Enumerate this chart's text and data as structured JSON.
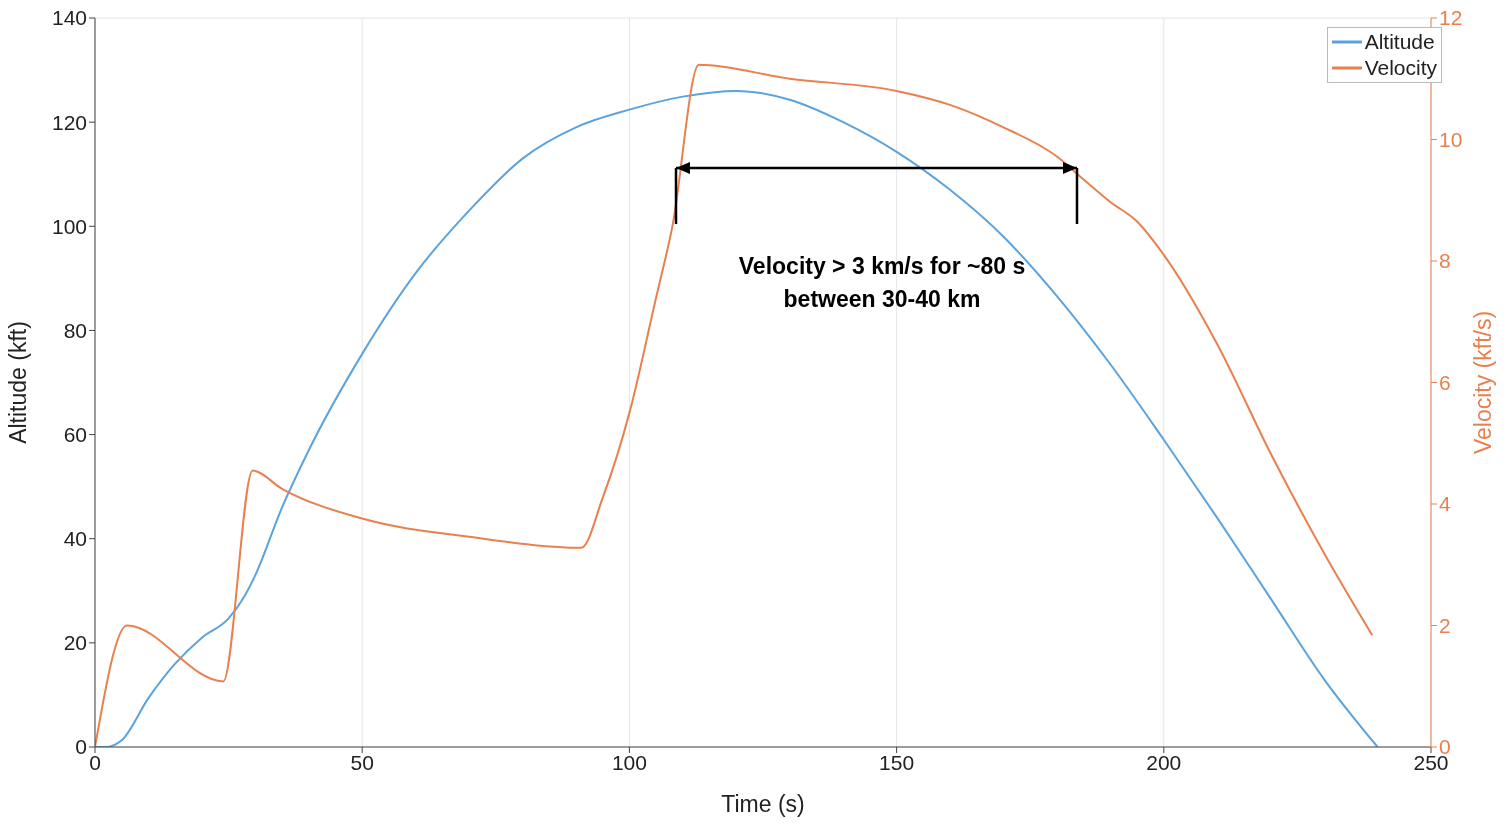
{
  "chart_data": {
    "type": "line",
    "xlabel": "Time (s)",
    "ylabel": "Altitude (kft)",
    "y2label": "Velocity (kft/s)",
    "xlim": [
      0,
      250
    ],
    "xticks": [
      0,
      50,
      100,
      150,
      200,
      250
    ],
    "ylim": [
      0,
      140
    ],
    "yticks": [
      0,
      20,
      40,
      60,
      80,
      100,
      120,
      140
    ],
    "y2lim": [
      0,
      12
    ],
    "y2ticks": [
      0,
      2,
      4,
      6,
      8,
      10,
      12
    ],
    "grid": true,
    "legend": "top right",
    "marker": "none",
    "line_style": "solid",
    "annotations": [
      "Velocity > 3 km/s for ~80 s between 30-40 km"
    ],
    "series": [
      {
        "name": "Altitude",
        "color": "#5aa3dc",
        "x": [
          0,
          2,
          5,
          10,
          15,
          20,
          25,
          28,
          30,
          35,
          40,
          50,
          60,
          70,
          80,
          90,
          100,
          110,
          120,
          130,
          140,
          150,
          160,
          170,
          180,
          190,
          200,
          210,
          220,
          230,
          240
        ],
        "values": [
          0,
          0,
          1.3,
          9.4,
          16,
          21,
          24.7,
          29,
          33,
          46,
          57,
          75.5,
          91,
          103,
          113,
          119,
          122.4,
          124.9,
          126,
          124.3,
          120,
          114.3,
          107,
          98,
          86.6,
          73.5,
          59,
          44,
          28.5,
          13,
          0
        ]
      },
      {
        "name": "Velocity",
        "color": "#e8804f",
        "axis": "y2",
        "x": [
          0,
          6,
          24,
          29.5,
          35,
          50,
          70,
          91,
          95,
          100,
          105,
          108,
          113,
          130,
          150,
          160,
          170,
          180,
          185,
          190,
          195,
          200,
          210,
          220,
          230,
          239
        ],
        "values": [
          0,
          2.0,
          1.08,
          4.55,
          4.25,
          3.76,
          3.46,
          3.28,
          4.1,
          5.5,
          7.4,
          8.55,
          11.23,
          11.0,
          10.8,
          10.57,
          10.2,
          9.72,
          9.34,
          8.97,
          8.65,
          8.1,
          6.63,
          4.83,
          3.19,
          1.84
        ]
      }
    ]
  }
}
